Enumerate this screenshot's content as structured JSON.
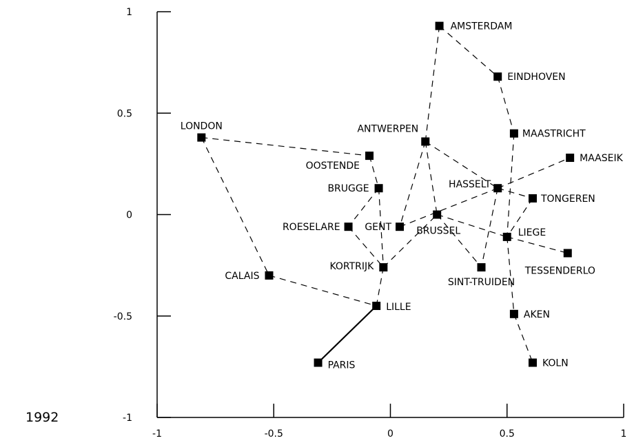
{
  "chart_data": {
    "type": "scatter",
    "title": "",
    "caption": "1992",
    "xlabel": "",
    "ylabel": "",
    "xlim": [
      -1,
      1
    ],
    "ylim": [
      -1,
      1
    ],
    "xticks": [
      -1,
      -0.5,
      0,
      0.5,
      1
    ],
    "yticks": [
      -1,
      -0.5,
      0,
      0.5,
      1
    ],
    "xtick_labels": [
      "-1",
      "-0.5",
      "0",
      "0.5",
      "1"
    ],
    "ytick_labels": [
      "-1",
      "-0.5",
      "0",
      "0.5",
      "1"
    ],
    "grid": false,
    "marker_color": "#000000",
    "points": [
      {
        "name": "AMSTERDAM",
        "x": 0.21,
        "y": 0.93
      },
      {
        "name": "EINDHOVEN",
        "x": 0.46,
        "y": 0.68
      },
      {
        "name": "MAASTRICHT",
        "x": 0.53,
        "y": 0.4
      },
      {
        "name": "MAASEIK",
        "x": 0.77,
        "y": 0.28
      },
      {
        "name": "LONDON",
        "x": -0.81,
        "y": 0.38
      },
      {
        "name": "OOSTENDE",
        "x": -0.09,
        "y": 0.29
      },
      {
        "name": "ANTWERPEN",
        "x": 0.15,
        "y": 0.36
      },
      {
        "name": "BRUGGE",
        "x": -0.05,
        "y": 0.13
      },
      {
        "name": "HASSELT",
        "x": 0.46,
        "y": 0.13
      },
      {
        "name": "TONGEREN",
        "x": 0.61,
        "y": 0.08
      },
      {
        "name": "BRUSSEL",
        "x": 0.2,
        "y": 0.0
      },
      {
        "name": "GENT",
        "x": 0.04,
        "y": -0.06
      },
      {
        "name": "ROESELARE",
        "x": -0.18,
        "y": -0.06
      },
      {
        "name": "LIEGE",
        "x": 0.5,
        "y": -0.11
      },
      {
        "name": "TESSENDERLO",
        "x": 0.76,
        "y": -0.19
      },
      {
        "name": "KORTRIJK",
        "x": -0.03,
        "y": -0.26
      },
      {
        "name": "SINT-TRUIDEN",
        "x": 0.39,
        "y": -0.26
      },
      {
        "name": "CALAIS",
        "x": -0.52,
        "y": -0.3
      },
      {
        "name": "LILLE",
        "x": -0.06,
        "y": -0.45
      },
      {
        "name": "AKEN",
        "x": 0.53,
        "y": -0.49
      },
      {
        "name": "PARIS",
        "x": -0.31,
        "y": -0.73
      },
      {
        "name": "KOLN",
        "x": 0.61,
        "y": -0.73
      }
    ],
    "connections": [
      {
        "from": "AMSTERDAM",
        "to": "EINDHOVEN",
        "style": "dashed"
      },
      {
        "from": "EINDHOVEN",
        "to": "MAASTRICHT",
        "style": "dashed"
      },
      {
        "from": "MAASTRICHT",
        "to": "LIEGE",
        "style": "dashed"
      },
      {
        "from": "AMSTERDAM",
        "to": "ANTWERPEN",
        "style": "dashed"
      },
      {
        "from": "ANTWERPEN",
        "to": "BRUSSEL",
        "style": "dashed"
      },
      {
        "from": "ANTWERPEN",
        "to": "GENT",
        "style": "dashed"
      },
      {
        "from": "ANTWERPEN",
        "to": "HASSELT",
        "style": "dashed"
      },
      {
        "from": "HASSELT",
        "to": "MAASEIK",
        "style": "dashed"
      },
      {
        "from": "HASSELT",
        "to": "TONGEREN",
        "style": "dashed"
      },
      {
        "from": "HASSELT",
        "to": "SINT-TRUIDEN",
        "style": "dashed"
      },
      {
        "from": "HASSELT",
        "to": "GENT",
        "style": "dashed"
      },
      {
        "from": "TONGEREN",
        "to": "LIEGE",
        "style": "dashed"
      },
      {
        "from": "BRUSSEL",
        "to": "LIEGE",
        "style": "dashed"
      },
      {
        "from": "BRUSSEL",
        "to": "SINT-TRUIDEN",
        "style": "dashed"
      },
      {
        "from": "LIEGE",
        "to": "TESSENDERLO",
        "style": "dashed"
      },
      {
        "from": "LIEGE",
        "to": "AKEN",
        "style": "dashed"
      },
      {
        "from": "AKEN",
        "to": "KOLN",
        "style": "dashed"
      },
      {
        "from": "LONDON",
        "to": "OOSTENDE",
        "style": "dashed"
      },
      {
        "from": "LONDON",
        "to": "CALAIS",
        "style": "dashed"
      },
      {
        "from": "OOSTENDE",
        "to": "BRUGGE",
        "style": "dashed"
      },
      {
        "from": "BRUGGE",
        "to": "ROESELARE",
        "style": "dashed"
      },
      {
        "from": "BRUGGE",
        "to": "KORTRIJK",
        "style": "dashed"
      },
      {
        "from": "ROESELARE",
        "to": "KORTRIJK",
        "style": "dashed"
      },
      {
        "from": "KORTRIJK",
        "to": "BRUSSEL",
        "style": "dashed"
      },
      {
        "from": "KORTRIJK",
        "to": "LILLE",
        "style": "dashed"
      },
      {
        "from": "CALAIS",
        "to": "LILLE",
        "style": "dashed"
      },
      {
        "from": "LILLE",
        "to": "PARIS",
        "style": "solid"
      }
    ]
  }
}
